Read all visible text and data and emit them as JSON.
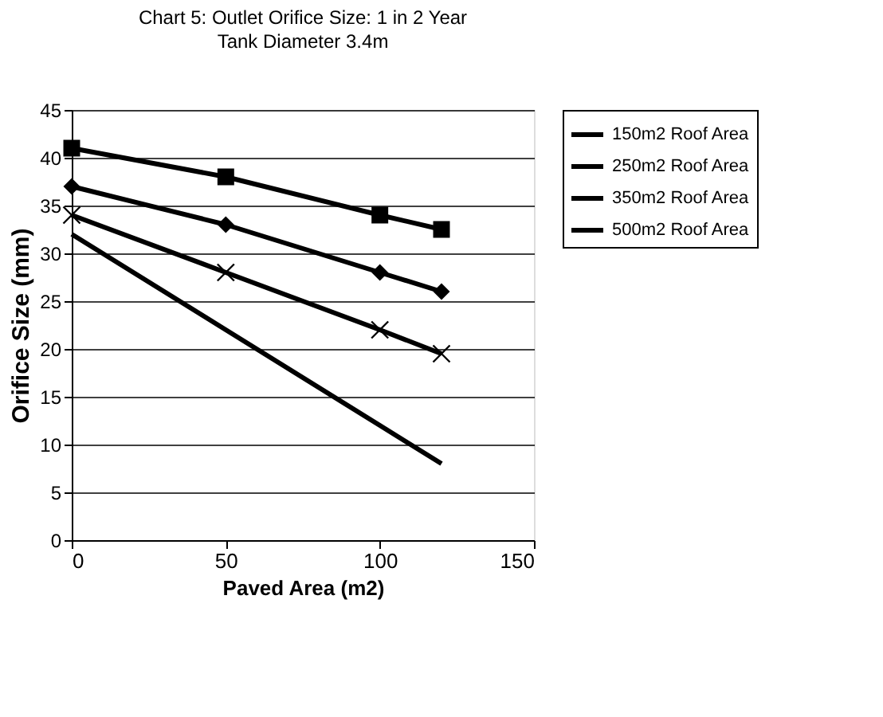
{
  "chart_data": {
    "type": "line",
    "title": "Chart 5: Outlet Orifice Size: 1 in 2 Year",
    "subtitle": "Tank Diameter 3.4m",
    "xlabel": "Paved Area (m2)",
    "ylabel": "Orifice Size (mm)",
    "x": [
      0,
      50,
      100,
      120
    ],
    "series": [
      {
        "name": "150m2 Roof Area",
        "color": "#000000",
        "marker": "none",
        "values": [
          32,
          22,
          12,
          8
        ]
      },
      {
        "name": "250m2 Roof Area",
        "color": "#000000",
        "marker": "cross",
        "values": [
          34,
          28,
          22,
          19.5
        ]
      },
      {
        "name": "350m2 Roof Area",
        "color": "#000000",
        "marker": "diamond",
        "values": [
          37,
          33,
          28,
          26
        ]
      },
      {
        "name": "500m2 Roof Area",
        "color": "#000000",
        "marker": "square",
        "values": [
          41,
          38,
          34,
          32.5
        ]
      }
    ],
    "xlim": [
      0,
      150
    ],
    "xticks": [
      0,
      50,
      100,
      150
    ],
    "ylim": [
      0,
      45
    ],
    "yticks": [
      0,
      5,
      10,
      15,
      20,
      25,
      30,
      35,
      40,
      45
    ],
    "grid": "y",
    "legend": "right",
    "line_style": "solid"
  }
}
